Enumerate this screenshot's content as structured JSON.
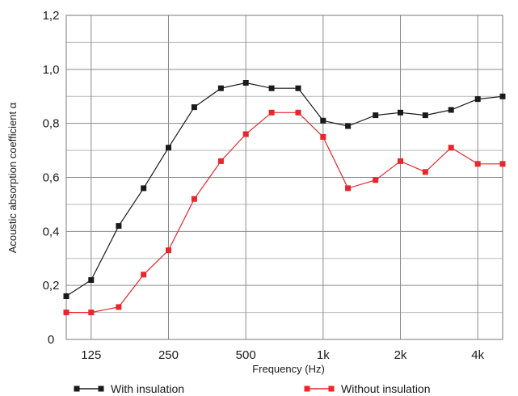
{
  "chart_data": {
    "type": "line",
    "title": "",
    "xlabel": "Frequency (Hz)",
    "ylabel": "Acoustic absorption coefficient α",
    "x_scale": "log",
    "xlim": [
      100,
      5000
    ],
    "ylim": [
      0,
      1.2
    ],
    "grid": true,
    "legend_position": "bottom",
    "x": [
      100,
      125,
      160,
      200,
      250,
      315,
      400,
      500,
      630,
      800,
      1000,
      1250,
      1600,
      2000,
      2500,
      3150,
      4000,
      5000
    ],
    "x_ticks": [
      {
        "value": 125,
        "label": "125"
      },
      {
        "value": 250,
        "label": "250"
      },
      {
        "value": 500,
        "label": "500"
      },
      {
        "value": 1000,
        "label": "1k"
      },
      {
        "value": 2000,
        "label": "2k"
      },
      {
        "value": 4000,
        "label": "4k"
      }
    ],
    "y_ticks": [
      {
        "value": 0,
        "label": "0"
      },
      {
        "value": 0.2,
        "label": "0,2"
      },
      {
        "value": 0.4,
        "label": "0,4"
      },
      {
        "value": 0.6,
        "label": "0,6"
      },
      {
        "value": 0.8,
        "label": "0,8"
      },
      {
        "value": 1.0,
        "label": "1,0"
      },
      {
        "value": 1.2,
        "label": "1,2"
      }
    ],
    "series": [
      {
        "name": "With insulation",
        "color": "#1a1a1a",
        "values": [
          0.16,
          0.22,
          0.42,
          0.56,
          0.71,
          0.86,
          0.93,
          0.95,
          0.93,
          0.93,
          0.81,
          0.79,
          0.83,
          0.84,
          0.83,
          0.85,
          0.89,
          0.9
        ]
      },
      {
        "name": "Without insulation",
        "color": "#e8262c",
        "values": [
          0.1,
          0.1,
          0.12,
          0.24,
          0.33,
          0.52,
          0.66,
          0.76,
          0.84,
          0.84,
          0.75,
          0.56,
          0.59,
          0.66,
          0.62,
          0.71,
          0.65,
          0.65
        ]
      }
    ]
  }
}
